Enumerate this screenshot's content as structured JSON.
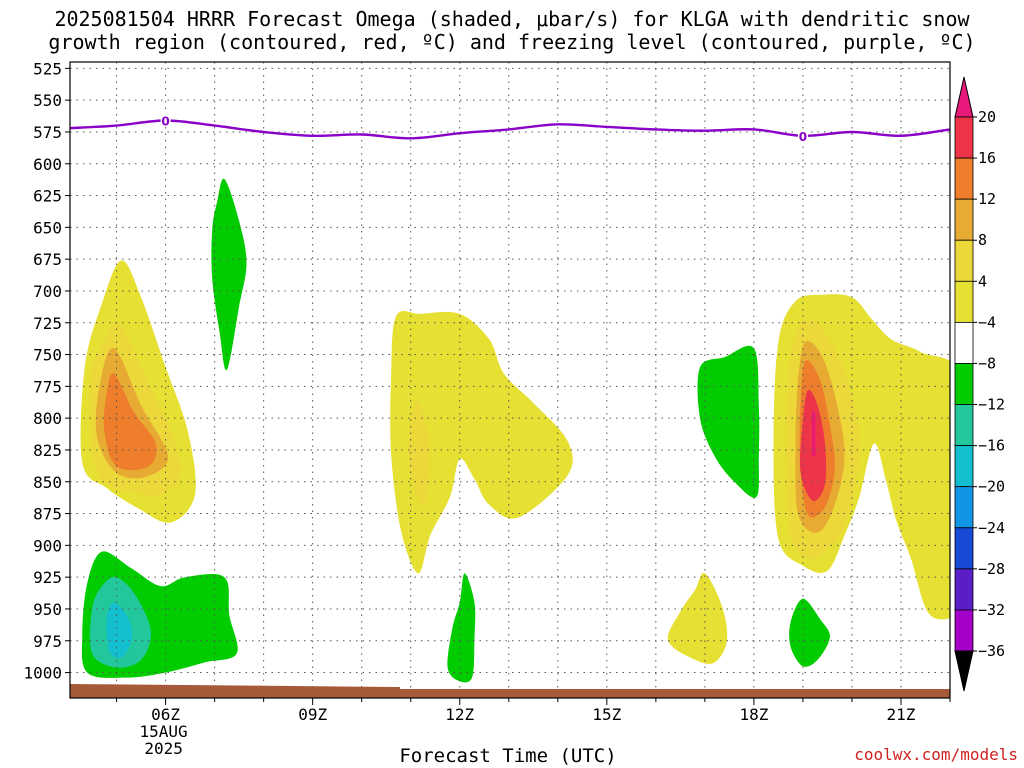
{
  "chart_data": {
    "type": "heatmap",
    "title": "2025081504 HRRR Forecast Omega (shaded, μbar/s) for KLGA with dendritic snow\ngrowth region (contoured, red, ºC) and freezing level (contoured, purple, ºC)",
    "xlabel": "Forecast Time (UTC)",
    "ylabel": "",
    "x_ticks": [
      {
        "hour": 6,
        "label": "06Z"
      },
      {
        "hour": 9,
        "label": "09Z"
      },
      {
        "hour": 12,
        "label": "12Z"
      },
      {
        "hour": 15,
        "label": "15Z"
      },
      {
        "hour": 18,
        "label": "18Z"
      },
      {
        "hour": 21,
        "label": "21Z"
      }
    ],
    "x_date_label": [
      "15AUG",
      "2025"
    ],
    "xlim": [
      4.05,
      22.0
    ],
    "y_ticks": [
      525,
      550,
      575,
      600,
      625,
      650,
      675,
      700,
      725,
      750,
      775,
      800,
      825,
      850,
      875,
      900,
      925,
      950,
      975,
      1000
    ],
    "ylim": [
      520,
      1020
    ],
    "grid": true,
    "colorbar": {
      "labels": [
        20,
        16,
        12,
        8,
        4,
        -4,
        -8,
        -12,
        -16,
        -20,
        -24,
        -28,
        -32,
        -36
      ],
      "colors": [
        "#ee3448",
        "#ee7e2c",
        "#e7ab33",
        "#ecd939",
        "#e6e033",
        "#ffffff",
        "#00cc00",
        "#22c79b",
        "#13bfce",
        "#1196e6",
        "#1748d6",
        "#5a1ec6",
        "#a300c8",
        "#aaaaaa"
      ],
      "cap_top": "#e8197a",
      "cap_bottom": "#000000"
    },
    "freezing_level": {
      "label": "0",
      "points": [
        [
          4.05,
          572
        ],
        [
          5,
          570
        ],
        [
          6,
          566
        ],
        [
          7,
          570
        ],
        [
          8,
          575
        ],
        [
          9,
          578
        ],
        [
          10,
          577
        ],
        [
          11,
          580
        ],
        [
          12,
          576
        ],
        [
          13,
          573
        ],
        [
          14,
          569
        ],
        [
          15,
          571
        ],
        [
          16,
          573
        ],
        [
          17,
          574
        ],
        [
          18,
          573
        ],
        [
          19,
          578
        ],
        [
          20,
          575
        ],
        [
          21,
          578
        ],
        [
          22,
          573
        ]
      ]
    },
    "ground": {
      "color": "#a65a3a"
    },
    "omega_regions": [
      {
        "level": 4,
        "points": [
          [
            5.1,
            676
          ],
          [
            5.5,
            705
          ],
          [
            6.0,
            760
          ],
          [
            6.45,
            810
          ],
          [
            6.6,
            860
          ],
          [
            6.1,
            882
          ],
          [
            5.4,
            870
          ],
          [
            4.8,
            855
          ],
          [
            4.3,
            835
          ],
          [
            4.35,
            760
          ],
          [
            4.7,
            710
          ]
        ]
      },
      {
        "level": 8,
        "points": [
          [
            5.05,
            725
          ],
          [
            5.5,
            760
          ],
          [
            6.1,
            810
          ],
          [
            6.3,
            845
          ],
          [
            5.9,
            860
          ],
          [
            5.3,
            858
          ],
          [
            4.6,
            842
          ],
          [
            4.45,
            770
          ],
          [
            4.75,
            740
          ]
        ]
      },
      {
        "level": 12,
        "points": [
          [
            4.95,
            745
          ],
          [
            5.5,
            790
          ],
          [
            6.05,
            830
          ],
          [
            5.6,
            846
          ],
          [
            5.0,
            843
          ],
          [
            4.6,
            815
          ],
          [
            4.65,
            775
          ]
        ]
      },
      {
        "level": 16,
        "points": [
          [
            4.95,
            765
          ],
          [
            5.35,
            795
          ],
          [
            5.8,
            820
          ],
          [
            5.65,
            838
          ],
          [
            5.0,
            838
          ],
          [
            4.75,
            810
          ],
          [
            4.8,
            780
          ]
        ]
      },
      {
        "level": 4,
        "points": [
          [
            10.7,
            720
          ],
          [
            11.2,
            718
          ],
          [
            12.0,
            718
          ],
          [
            12.6,
            738
          ],
          [
            12.9,
            765
          ],
          [
            13.5,
            788
          ],
          [
            14.2,
            818
          ],
          [
            14.2,
            845
          ],
          [
            13.2,
            878
          ],
          [
            12.6,
            868
          ],
          [
            12.3,
            848
          ],
          [
            12.0,
            832
          ],
          [
            11.8,
            862
          ],
          [
            11.4,
            892
          ],
          [
            11.15,
            922
          ],
          [
            10.8,
            888
          ],
          [
            10.6,
            828
          ],
          [
            10.6,
            768
          ]
        ]
      },
      {
        "level": 8,
        "points": [
          [
            11.2,
            790
          ],
          [
            11.4,
            825
          ],
          [
            11.3,
            865
          ],
          [
            11.1,
            860
          ],
          [
            10.95,
            825
          ],
          [
            11.05,
            792
          ]
        ]
      },
      {
        "level": 4,
        "points": [
          [
            19.4,
            703
          ],
          [
            20.0,
            705
          ],
          [
            20.4,
            722
          ],
          [
            20.8,
            738
          ],
          [
            21.4,
            748
          ],
          [
            22.3,
            770
          ],
          [
            22.6,
            880
          ],
          [
            22.7,
            930
          ],
          [
            22.3,
            952
          ],
          [
            21.6,
            955
          ],
          [
            21.2,
            910
          ],
          [
            20.9,
            880
          ],
          [
            20.7,
            850
          ],
          [
            20.45,
            820
          ],
          [
            20.15,
            862
          ],
          [
            19.85,
            892
          ],
          [
            19.5,
            920
          ],
          [
            19.0,
            916
          ],
          [
            18.5,
            895
          ],
          [
            18.4,
            820
          ],
          [
            18.5,
            740
          ],
          [
            18.85,
            708
          ]
        ]
      },
      {
        "level": 8,
        "points": [
          [
            19.05,
            722
          ],
          [
            19.5,
            735
          ],
          [
            19.9,
            770
          ],
          [
            20.15,
            820
          ],
          [
            19.9,
            880
          ],
          [
            19.45,
            905
          ],
          [
            19.1,
            910
          ],
          [
            18.75,
            892
          ],
          [
            18.65,
            820
          ],
          [
            18.75,
            750
          ]
        ]
      },
      {
        "level": 12,
        "points": [
          [
            19.05,
            740
          ],
          [
            19.4,
            752
          ],
          [
            19.7,
            790
          ],
          [
            19.85,
            830
          ],
          [
            19.65,
            868
          ],
          [
            19.3,
            890
          ],
          [
            18.9,
            875
          ],
          [
            18.85,
            820
          ],
          [
            18.9,
            770
          ]
        ]
      },
      {
        "level": 16,
        "points": [
          [
            19.05,
            755
          ],
          [
            19.35,
            770
          ],
          [
            19.55,
            805
          ],
          [
            19.65,
            840
          ],
          [
            19.45,
            870
          ],
          [
            19.1,
            876
          ],
          [
            18.95,
            840
          ],
          [
            18.95,
            790
          ]
        ]
      },
      {
        "level": 20,
        "points": [
          [
            19.1,
            778
          ],
          [
            19.3,
            790
          ],
          [
            19.45,
            820
          ],
          [
            19.45,
            852
          ],
          [
            19.2,
            865
          ],
          [
            18.95,
            842
          ],
          [
            19.0,
            802
          ]
        ]
      },
      {
        "level": 4,
        "points": [
          [
            17.0,
            922
          ],
          [
            17.35,
            948
          ],
          [
            17.45,
            975
          ],
          [
            17.2,
            992
          ],
          [
            16.8,
            990
          ],
          [
            16.25,
            975
          ],
          [
            16.5,
            952
          ],
          [
            16.8,
            935
          ]
        ]
      },
      {
        "level": -4,
        "points": [
          [
            4.7,
            905
          ],
          [
            5.3,
            918
          ],
          [
            5.9,
            932
          ],
          [
            6.4,
            925
          ],
          [
            7.2,
            925
          ],
          [
            7.3,
            955
          ],
          [
            7.45,
            985
          ],
          [
            6.8,
            992
          ],
          [
            6.0,
            1000
          ],
          [
            5.2,
            1004
          ],
          [
            4.4,
            1000
          ],
          [
            4.3,
            970
          ],
          [
            4.4,
            930
          ]
        ]
      },
      {
        "level": -8,
        "points": [
          [
            5.0,
            925
          ],
          [
            5.4,
            940
          ],
          [
            5.7,
            968
          ],
          [
            5.5,
            990
          ],
          [
            5.0,
            996
          ],
          [
            4.5,
            985
          ],
          [
            4.5,
            950
          ],
          [
            4.7,
            932
          ]
        ]
      },
      {
        "level": -12,
        "points": [
          [
            4.95,
            945
          ],
          [
            5.25,
            958
          ],
          [
            5.3,
            975
          ],
          [
            5.1,
            988
          ],
          [
            4.85,
            983
          ],
          [
            4.8,
            958
          ]
        ]
      },
      {
        "level": -4,
        "points": [
          [
            7.2,
            612
          ],
          [
            7.5,
            645
          ],
          [
            7.65,
            678
          ],
          [
            7.5,
            712
          ],
          [
            7.25,
            762
          ],
          [
            7.1,
            732
          ],
          [
            6.95,
            690
          ],
          [
            6.95,
            652
          ],
          [
            7.05,
            630
          ]
        ]
      },
      {
        "level": -4,
        "points": [
          [
            12.1,
            922
          ],
          [
            12.3,
            945
          ],
          [
            12.3,
            972
          ],
          [
            12.25,
            1004
          ],
          [
            11.95,
            1006
          ],
          [
            11.75,
            995
          ],
          [
            11.85,
            965
          ],
          [
            12.0,
            945
          ]
        ]
      },
      {
        "level": -4,
        "points": [
          [
            18.0,
            745
          ],
          [
            18.1,
            790
          ],
          [
            18.1,
            830
          ],
          [
            18.05,
            862
          ],
          [
            17.6,
            850
          ],
          [
            17.2,
            830
          ],
          [
            16.9,
            800
          ],
          [
            16.9,
            760
          ],
          [
            17.4,
            752
          ]
        ]
      },
      {
        "level": -4,
        "points": [
          [
            19.0,
            942
          ],
          [
            19.35,
            958
          ],
          [
            19.55,
            972
          ],
          [
            19.3,
            990
          ],
          [
            19.0,
            995
          ],
          [
            18.75,
            980
          ],
          [
            18.75,
            960
          ]
        ]
      }
    ]
  },
  "watermark": "coolwx.com/models"
}
